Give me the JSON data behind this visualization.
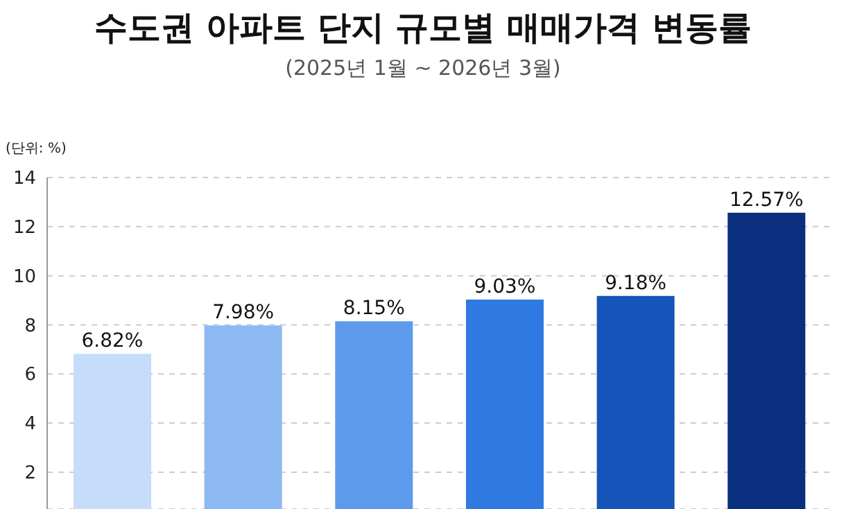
{
  "chart_data": {
    "type": "bar",
    "title": "수도권 아파트 단지 규모별 매매가격 변동률",
    "subtitle": "(2025년 1월 ~ 2026년 3월)",
    "ylabel": "(단위: %)",
    "categories": [
      null,
      null,
      null,
      null,
      null,
      null
    ],
    "values": [
      6.82,
      7.98,
      8.15,
      9.03,
      9.18,
      12.57
    ],
    "value_labels": [
      "6.82%",
      "7.98%",
      "8.15%",
      "9.03%",
      "9.18%",
      "12.57%"
    ],
    "colors": [
      "#c5dcfa",
      "#8cb9f2",
      "#5e9aec",
      "#2f79e0",
      "#1554b8",
      "#0a2f7e"
    ],
    "ylim": [
      0.5,
      14
    ],
    "yticks": [
      2,
      4,
      6,
      8,
      10,
      12,
      14
    ],
    "grid": "y"
  }
}
